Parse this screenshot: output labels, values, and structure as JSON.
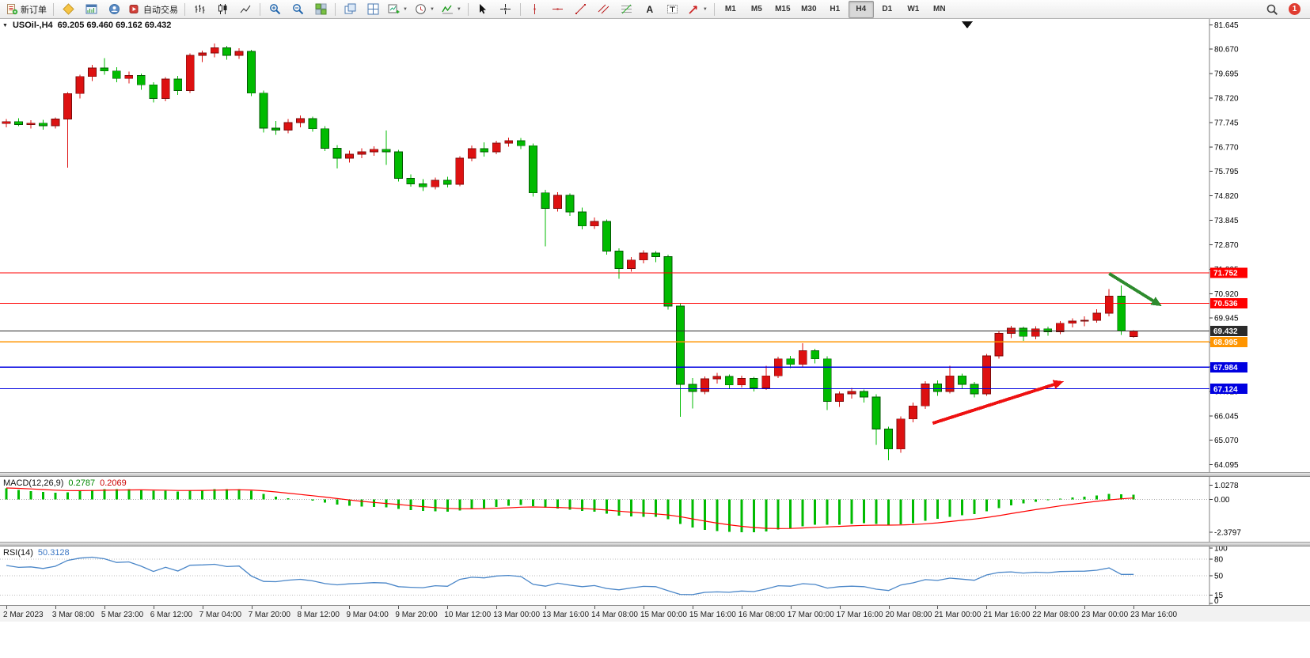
{
  "toolbar": {
    "new_order": "新订单",
    "auto_trading": "自动交易",
    "text_tool": "A",
    "timeframes": [
      "M1",
      "M5",
      "M15",
      "M30",
      "H1",
      "H4",
      "D1",
      "W1",
      "MN"
    ],
    "active_timeframe": "H4",
    "notification_badge": "1"
  },
  "chart": {
    "symbol_period": "USOil-,H4",
    "ohlc_text": "69.205 69.460 69.162 69.432",
    "horizontal_lines": [
      {
        "price": 71.752,
        "label": "71.752",
        "color": "#ff0000"
      },
      {
        "price": 70.536,
        "label": "70.536",
        "color": "#ff0000"
      },
      {
        "price": 69.432,
        "label": "69.432",
        "color": "#2b2b2b"
      },
      {
        "price": 68.995,
        "label": "68.995",
        "color": "#ff9500"
      },
      {
        "price": 67.984,
        "label": "67.984",
        "color": "#0000e0"
      },
      {
        "price": 67.124,
        "label": "67.124",
        "color": "#0000e0"
      }
    ],
    "arrows": [
      {
        "name": "green-down-arrow",
        "from_bar": 90,
        "from_price": 71.72,
        "to_bar": 94.3,
        "to_price": 70.42,
        "color": "#2e8b2e",
        "width": 4
      },
      {
        "name": "red-up-arrow",
        "from_bar": 75.6,
        "from_price": 65.75,
        "to_bar": 86.3,
        "to_price": 67.42,
        "color": "#ee1111",
        "width": 4
      }
    ]
  },
  "chart_data": {
    "type": "candlestick",
    "symbol": "USOil-",
    "timeframe": "H4",
    "current_ohlc": {
      "open": 69.205,
      "high": 69.46,
      "low": 69.162,
      "close": 69.432
    },
    "up_color": "#dd1111",
    "down_color": "#00bb00",
    "visible_price_range": [
      63.77,
      81.88
    ],
    "price_ticks": [
      81.645,
      80.67,
      79.695,
      78.72,
      77.745,
      76.77,
      75.795,
      74.82,
      73.845,
      72.87,
      71.895,
      70.92,
      69.945,
      68.97,
      67.995,
      67.02,
      66.045,
      65.07,
      64.095
    ],
    "bars_per_label": 4,
    "x_labels": [
      "2 Mar 2023",
      "3 Mar 08:00",
      "5 Mar 23:00",
      "6 Mar 12:00",
      "7 Mar 04:00",
      "7 Mar 20:00",
      "8 Mar 12:00",
      "9 Mar 04:00",
      "9 Mar 20:00",
      "10 Mar 12:00",
      "13 Mar 00:00",
      "13 Mar 16:00",
      "14 Mar 08:00",
      "15 Mar 00:00",
      "15 Mar 16:00",
      "16 Mar 08:00",
      "17 Mar 00:00",
      "17 Mar 16:00",
      "20 Mar 08:00",
      "21 Mar 00:00",
      "21 Mar 16:00",
      "22 Mar 08:00",
      "23 Mar 00:00",
      "23 Mar 16:00"
    ],
    "candles": [
      [
        77.7,
        77.88,
        77.55,
        77.78
      ],
      [
        77.78,
        77.92,
        77.6,
        77.66
      ],
      [
        77.66,
        77.84,
        77.5,
        77.72
      ],
      [
        77.72,
        77.86,
        77.46,
        77.62
      ],
      [
        77.62,
        77.95,
        77.5,
        77.88
      ],
      [
        77.88,
        78.95,
        75.95,
        78.9
      ],
      [
        78.9,
        79.65,
        78.7,
        79.58
      ],
      [
        79.58,
        80.05,
        79.4,
        79.92
      ],
      [
        79.92,
        80.32,
        79.65,
        79.8
      ],
      [
        79.8,
        79.95,
        79.35,
        79.5
      ],
      [
        79.5,
        79.78,
        79.3,
        79.62
      ],
      [
        79.62,
        79.7,
        79.05,
        79.25
      ],
      [
        79.25,
        79.35,
        78.55,
        78.7
      ],
      [
        78.7,
        79.55,
        78.6,
        79.48
      ],
      [
        79.48,
        79.6,
        78.85,
        79.02
      ],
      [
        79.02,
        80.5,
        78.92,
        80.42
      ],
      [
        80.42,
        80.62,
        80.15,
        80.52
      ],
      [
        80.52,
        80.9,
        80.35,
        80.72
      ],
      [
        80.72,
        80.8,
        80.25,
        80.42
      ],
      [
        80.42,
        80.7,
        80.28,
        80.58
      ],
      [
        80.58,
        80.65,
        78.8,
        78.92
      ],
      [
        78.92,
        79.02,
        77.35,
        77.52
      ],
      [
        77.52,
        77.8,
        77.25,
        77.44
      ],
      [
        77.44,
        77.88,
        77.32,
        77.74
      ],
      [
        77.74,
        78.02,
        77.55,
        77.9
      ],
      [
        77.9,
        77.98,
        77.38,
        77.5
      ],
      [
        77.5,
        77.6,
        76.6,
        76.72
      ],
      [
        76.72,
        76.85,
        75.92,
        76.32
      ],
      [
        76.32,
        76.62,
        76.15,
        76.48
      ],
      [
        76.48,
        76.72,
        76.32,
        76.58
      ],
      [
        76.58,
        76.8,
        76.42,
        76.68
      ],
      [
        76.68,
        77.42,
        76.05,
        76.58
      ],
      [
        76.58,
        76.66,
        75.4,
        75.52
      ],
      [
        75.52,
        75.68,
        75.18,
        75.3
      ],
      [
        75.3,
        75.48,
        75.02,
        75.18
      ],
      [
        75.18,
        75.55,
        75.08,
        75.44
      ],
      [
        75.44,
        75.58,
        75.15,
        75.28
      ],
      [
        75.28,
        76.4,
        75.2,
        76.32
      ],
      [
        76.32,
        76.82,
        76.2,
        76.7
      ],
      [
        76.7,
        76.95,
        76.38,
        76.58
      ],
      [
        76.58,
        77.02,
        76.48,
        76.92
      ],
      [
        76.92,
        77.15,
        76.78,
        77.02
      ],
      [
        77.02,
        77.12,
        76.68,
        76.82
      ],
      [
        76.82,
        76.9,
        74.8,
        74.94
      ],
      [
        74.94,
        75.06,
        72.8,
        74.32
      ],
      [
        74.32,
        74.96,
        74.2,
        74.84
      ],
      [
        74.84,
        74.92,
        74.02,
        74.18
      ],
      [
        74.18,
        74.35,
        73.48,
        73.62
      ],
      [
        73.62,
        73.96,
        73.5,
        73.8
      ],
      [
        73.8,
        73.88,
        72.48,
        72.62
      ],
      [
        72.62,
        72.72,
        71.52,
        71.92
      ],
      [
        71.92,
        72.38,
        71.8,
        72.26
      ],
      [
        72.26,
        72.64,
        72.12,
        72.54
      ],
      [
        72.54,
        72.62,
        72.18,
        72.4
      ],
      [
        72.4,
        72.48,
        70.28,
        70.42
      ],
      [
        70.42,
        70.52,
        66.0,
        67.3
      ],
      [
        67.3,
        67.56,
        66.34,
        67.02
      ],
      [
        67.02,
        67.62,
        66.9,
        67.52
      ],
      [
        67.52,
        67.76,
        67.34,
        67.62
      ],
      [
        67.62,
        67.7,
        67.12,
        67.28
      ],
      [
        67.28,
        67.64,
        67.18,
        67.54
      ],
      [
        67.54,
        67.6,
        67.02,
        67.16
      ],
      [
        67.16,
        68.04,
        67.08,
        67.64
      ],
      [
        67.64,
        68.4,
        67.56,
        68.32
      ],
      [
        68.32,
        68.44,
        67.94,
        68.1
      ],
      [
        68.1,
        68.94,
        68.0,
        68.64
      ],
      [
        68.64,
        68.72,
        68.14,
        68.32
      ],
      [
        68.32,
        68.42,
        66.28,
        66.62
      ],
      [
        66.62,
        67.02,
        66.4,
        66.92
      ],
      [
        66.92,
        67.16,
        66.74,
        67.02
      ],
      [
        67.02,
        67.1,
        66.58,
        66.8
      ],
      [
        66.8,
        66.9,
        64.88,
        65.52
      ],
      [
        65.52,
        65.62,
        64.28,
        64.72
      ],
      [
        64.72,
        66.02,
        64.58,
        65.92
      ],
      [
        65.92,
        66.58,
        65.78,
        66.44
      ],
      [
        66.44,
        67.42,
        66.32,
        67.32
      ],
      [
        67.32,
        67.46,
        66.84,
        67.02
      ],
      [
        67.02,
        68.04,
        66.94,
        67.64
      ],
      [
        67.64,
        67.72,
        67.12,
        67.3
      ],
      [
        67.3,
        67.4,
        66.78,
        66.92
      ],
      [
        66.92,
        68.52,
        66.84,
        68.44
      ],
      [
        68.44,
        69.42,
        68.32,
        69.34
      ],
      [
        69.34,
        69.64,
        69.14,
        69.54
      ],
      [
        69.54,
        69.6,
        69.04,
        69.22
      ],
      [
        69.22,
        69.62,
        69.1,
        69.52
      ],
      [
        69.52,
        69.6,
        69.24,
        69.4
      ],
      [
        69.4,
        69.82,
        69.3,
        69.74
      ],
      [
        69.74,
        69.94,
        69.58,
        69.82
      ],
      [
        69.82,
        70.02,
        69.62,
        69.86
      ],
      [
        69.86,
        70.3,
        69.76,
        70.14
      ],
      [
        70.14,
        71.1,
        70.02,
        70.82
      ],
      [
        70.82,
        71.24,
        69.28,
        69.42
      ],
      [
        69.205,
        69.46,
        69.162,
        69.432
      ]
    ],
    "indicators": [
      {
        "type": "MACD",
        "label": "MACD(12,26,9)",
        "value_main": "0.2787",
        "value_signal": "0.2069",
        "histogram_color": "#00bb00",
        "signal_color": "#ff0000",
        "axis": [
          {
            "v": 1.0278,
            "t": "1.0278"
          },
          {
            "v": 0,
            "t": "0.00"
          },
          {
            "v": -2.3797,
            "t": "-2.3797"
          }
        ]
      },
      {
        "type": "RSI",
        "label": "RSI(14)",
        "value": "50.3128",
        "line_color": "#4a86c8",
        "levels": [
          80,
          50,
          15
        ],
        "axis": [
          {
            "v": 100,
            "t": "100"
          },
          {
            "v": 80,
            "t": "80"
          },
          {
            "v": 50,
            "t": "50"
          },
          {
            "v": 15,
            "t": "15"
          },
          {
            "v": 0,
            "t": "0"
          }
        ]
      }
    ]
  }
}
